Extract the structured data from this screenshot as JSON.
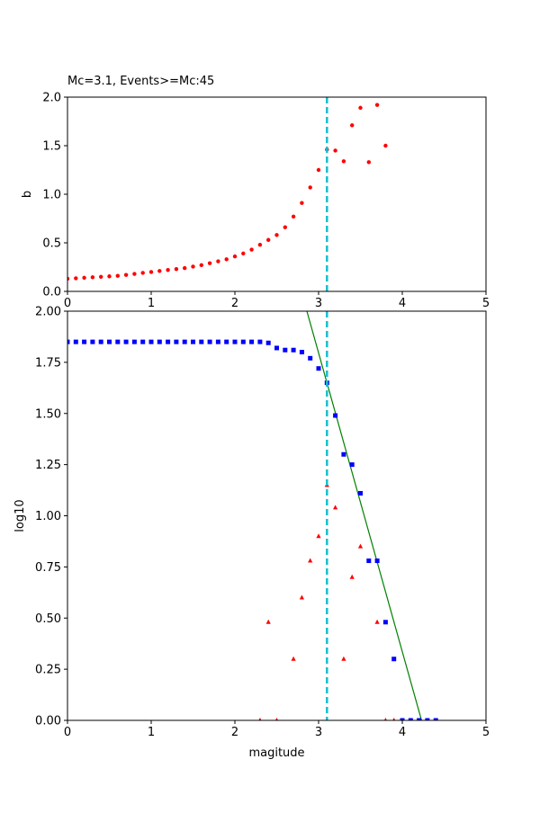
{
  "chart_data": [
    {
      "type": "scatter",
      "title": "Mc=3.1, Events>=Mc:45",
      "xlabel": "",
      "ylabel": "b",
      "xlim": [
        0,
        5
      ],
      "ylim": [
        0,
        2.0
      ],
      "xticks": [
        "0",
        "1",
        "2",
        "3",
        "4",
        "5"
      ],
      "yticks": [
        "0.0",
        "0.5",
        "1.0",
        "1.5",
        "2.0"
      ],
      "mc_line": {
        "x": 3.1,
        "color": "#17becf"
      },
      "series": [
        {
          "marker": "dot",
          "color": "#ff0000",
          "x": [
            0.0,
            0.1,
            0.2,
            0.3,
            0.4,
            0.5,
            0.6,
            0.7,
            0.8,
            0.9,
            1.0,
            1.1,
            1.2,
            1.3,
            1.4,
            1.5,
            1.6,
            1.7,
            1.8,
            1.9,
            2.0,
            2.1,
            2.2,
            2.3,
            2.4,
            2.5,
            2.6,
            2.7,
            2.8,
            2.9,
            3.0,
            3.1,
            3.2,
            3.3,
            3.4,
            3.5,
            3.6,
            3.7,
            3.8
          ],
          "y": [
            0.13,
            0.135,
            0.14,
            0.145,
            0.15,
            0.155,
            0.16,
            0.17,
            0.18,
            0.19,
            0.2,
            0.21,
            0.22,
            0.23,
            0.24,
            0.255,
            0.27,
            0.29,
            0.31,
            0.33,
            0.36,
            0.39,
            0.43,
            0.48,
            0.53,
            0.58,
            0.66,
            0.77,
            0.91,
            1.07,
            1.25,
            1.46,
            1.45,
            1.34,
            1.71,
            1.89,
            1.33,
            1.92,
            1.5
          ]
        }
      ]
    },
    {
      "type": "scatter",
      "title": "",
      "xlabel": "magitude",
      "ylabel": "log10",
      "xlim": [
        0,
        5
      ],
      "ylim": [
        0,
        2.0
      ],
      "xticks": [
        "0",
        "1",
        "2",
        "3",
        "4",
        "5"
      ],
      "yticks": [
        "0.00",
        "0.25",
        "0.50",
        "0.75",
        "1.00",
        "1.25",
        "1.50",
        "1.75",
        "2.00"
      ],
      "mc_line": {
        "x": 3.1,
        "color": "#17becf"
      },
      "fit_line": {
        "color": "#008000",
        "x": [
          2.86,
          4.23
        ],
        "y": [
          2.0,
          0.0
        ]
      },
      "series": [
        {
          "marker": "square",
          "color": "#0000ff",
          "x": [
            0.0,
            0.1,
            0.2,
            0.3,
            0.4,
            0.5,
            0.6,
            0.7,
            0.8,
            0.9,
            1.0,
            1.1,
            1.2,
            1.3,
            1.4,
            1.5,
            1.6,
            1.7,
            1.8,
            1.9,
            2.0,
            2.1,
            2.2,
            2.3,
            2.4,
            2.5,
            2.6,
            2.7,
            2.8,
            2.9,
            3.0,
            3.1,
            3.2,
            3.3,
            3.4,
            3.5,
            3.6,
            3.7,
            3.8,
            3.9,
            4.0,
            4.1,
            4.2,
            4.3,
            4.4
          ],
          "y": [
            1.85,
            1.85,
            1.85,
            1.85,
            1.85,
            1.85,
            1.85,
            1.85,
            1.85,
            1.85,
            1.85,
            1.85,
            1.85,
            1.85,
            1.85,
            1.85,
            1.85,
            1.85,
            1.85,
            1.85,
            1.85,
            1.85,
            1.85,
            1.85,
            1.845,
            1.82,
            1.81,
            1.81,
            1.8,
            1.77,
            1.72,
            1.65,
            1.49,
            1.3,
            1.25,
            1.11,
            0.78,
            0.78,
            0.48,
            0.3,
            0.0,
            0.0,
            0.0,
            0.0,
            0.0
          ]
        },
        {
          "marker": "triangle",
          "color": "#ff0000",
          "x": [
            2.3,
            2.4,
            2.5,
            2.7,
            2.8,
            2.9,
            3.0,
            3.1,
            3.2,
            3.3,
            3.4,
            3.5,
            3.7,
            3.8,
            3.9
          ],
          "y": [
            0.0,
            0.48,
            0.0,
            0.3,
            0.6,
            0.78,
            0.9,
            1.15,
            1.04,
            0.3,
            0.7,
            0.85,
            0.48,
            0.0,
            0.0
          ]
        }
      ]
    }
  ]
}
